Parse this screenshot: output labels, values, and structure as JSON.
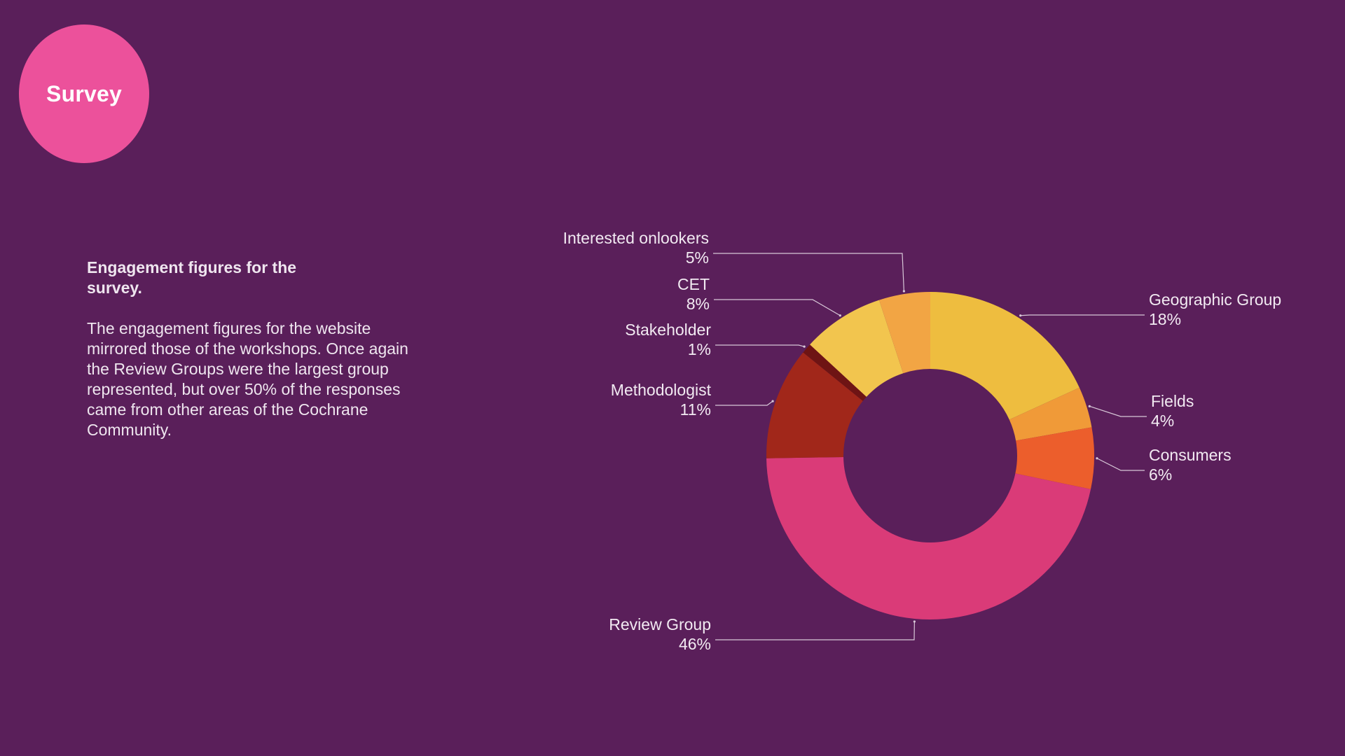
{
  "badge": {
    "label": "Survey"
  },
  "intro": {
    "heading": "Engagement figures for the survey.",
    "body": "The engagement figures for the website mirrored those of the workshops. Once again the Review Groups were the largest group represented, but over 50% of the responses came from other areas of the Cochrane Community."
  },
  "colors": {
    "background": "#5a1f5a",
    "badge": "#ec519b",
    "text": "#f2eaf2",
    "leader": "#d8c8d8"
  },
  "chart_data": {
    "type": "pie",
    "style": "donut",
    "title": "",
    "series": [
      {
        "name": "Geographic Group",
        "value": 18,
        "pct_label": "18%",
        "color": "#eebd3f"
      },
      {
        "name": "Fields",
        "value": 4,
        "pct_label": "4%",
        "color": "#f09a38"
      },
      {
        "name": "Consumers",
        "value": 6,
        "pct_label": "6%",
        "color": "#ec5e2c"
      },
      {
        "name": "Review Group",
        "value": 46,
        "pct_label": "46%",
        "color": "#da3b78"
      },
      {
        "name": "Methodologist",
        "value": 11,
        "pct_label": "11%",
        "color": "#a1271a"
      },
      {
        "name": "Stakeholder",
        "value": 1,
        "pct_label": "1%",
        "color": "#6e1414"
      },
      {
        "name": "CET",
        "value": 8,
        "pct_label": "8%",
        "color": "#f2c54e"
      },
      {
        "name": "Interested onlookers",
        "value": 5,
        "pct_label": "5%",
        "color": "#f2a544"
      }
    ]
  }
}
